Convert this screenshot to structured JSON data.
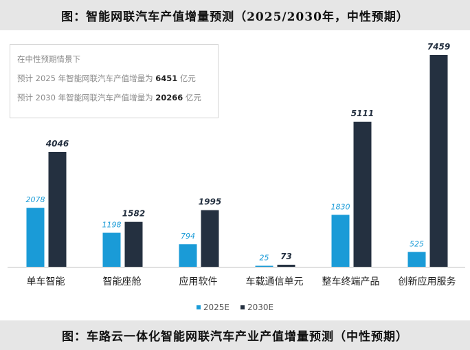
{
  "title": "图：智能网联汽车产值增量预测（2025/2030年，中性预期）",
  "caption": "图：车路云一体化智能网联汽车产业产值增量预测（中性预期）",
  "note": {
    "heading": "在中性预期情景下",
    "line1_prefix": "预计 2025 年智能网联汽车产值增量为",
    "line1_value": "6451",
    "line1_unit": "亿元",
    "line2_prefix": "预计 2030 年智能网联汽车产值增量为",
    "line2_value": "20266",
    "line2_unit": "亿元"
  },
  "colors": {
    "series_2025": "#1a9bd7",
    "series_2030": "#243040",
    "label_2025": "#1a9bd7",
    "label_2030": "#243040",
    "axis": "#bfbfbf"
  },
  "chart_data": {
    "type": "bar",
    "categories": [
      "单车智能",
      "智能座舱",
      "应用软件",
      "车载通信单元",
      "整车终端产品",
      "创新应用服务"
    ],
    "series": [
      {
        "name": "2025E",
        "values": [
          2078,
          1198,
          794,
          25,
          1830,
          525
        ]
      },
      {
        "name": "2030E",
        "values": [
          4046,
          1582,
          1995,
          73,
          5111,
          7459
        ]
      }
    ],
    "ylim": [
      0,
      7459
    ],
    "grid": false,
    "legend_position": "bottom",
    "xlabel": "",
    "ylabel": ""
  }
}
